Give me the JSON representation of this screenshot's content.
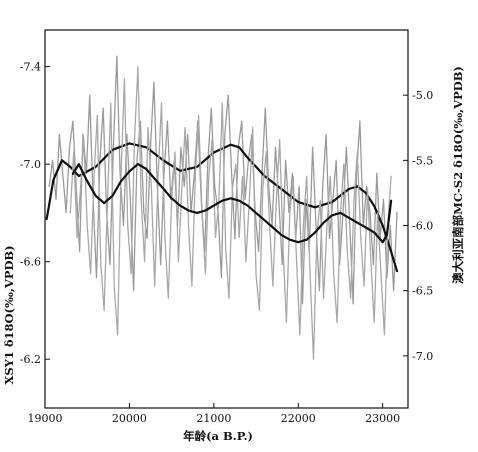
{
  "chart_data": {
    "type": "line",
    "xlabel": "年龄(a B.P.)",
    "left_ylabel": "XSY1 δ18O(‰,VPDB)",
    "right_ylabel": "澳大利亚南部MC-S2 δ18O(‰,VPDB)",
    "x_ticks": [
      "19000",
      "20000",
      "21000",
      "22000",
      "23000"
    ],
    "left_ticks": [
      "-7.4",
      "-7.0",
      "-6.6",
      "-6.2"
    ],
    "right_ticks": [
      "-5.0",
      "-5.5",
      "-6.0",
      "-6.5",
      "-7.0"
    ],
    "xlim": [
      19000,
      23300
    ],
    "left_axis": {
      "ylim": [
        -6.0,
        -7.55
      ],
      "reversed": true
    },
    "right_axis": {
      "ylim": [
        -7.4,
        -4.5
      ],
      "reversed": true
    },
    "series": [
      {
        "axis": "right",
        "kind": "raw",
        "color": "#9a9a9a",
        "x": [
          19050,
          19090,
          19130,
          19170,
          19210,
          19250,
          19290,
          19330,
          19370,
          19410,
          19450,
          19490,
          19530,
          19570,
          19610,
          19650,
          19690,
          19730,
          19770,
          19810,
          19850,
          19890,
          19930,
          19970,
          20010,
          20050,
          20090,
          20130,
          20170,
          20210,
          20250,
          20290,
          20330,
          20370,
          20410,
          20450,
          20490,
          20530,
          20570,
          20610,
          20650,
          20690,
          20730,
          20770,
          20810,
          20850,
          20890,
          20930,
          20970,
          21010,
          21050,
          21090,
          21130,
          21170,
          21210,
          21250,
          21290,
          21330,
          21370,
          21410,
          21450,
          21490,
          21530,
          21570,
          21610,
          21650,
          21690,
          21730,
          21770,
          21810,
          21850,
          21890,
          21930,
          21970,
          22010,
          22050,
          22090,
          22130,
          22170,
          22210,
          22250,
          22290,
          22330,
          22370,
          22410,
          22450,
          22490,
          22530,
          22570,
          22610,
          22650,
          22690,
          22730,
          22770,
          22810,
          22850,
          22890,
          22930,
          22970,
          23010,
          23050,
          23090,
          23130,
          23170
        ],
        "y": [
          -5.7,
          -5.5,
          -5.8,
          -5.3,
          -5.6,
          -5.9,
          -5.4,
          -5.2,
          -5.7,
          -6.2,
          -5.3,
          -5.6,
          -5.0,
          -5.8,
          -6.4,
          -5.5,
          -5.1,
          -5.9,
          -6.3,
          -5.4,
          -4.7,
          -5.6,
          -6.0,
          -5.3,
          -5.8,
          -6.5,
          -5.5,
          -5.2,
          -5.9,
          -6.1,
          -5.4,
          -4.9,
          -5.7,
          -6.3,
          -5.6,
          -5.2,
          -5.8,
          -5.5,
          -6.0,
          -5.4,
          -5.7,
          -5.3,
          -5.9,
          -5.6,
          -5.2,
          -5.8,
          -6.2,
          -5.5,
          -5.1,
          -5.7,
          -5.9,
          -6.4,
          -5.3,
          -5.0,
          -5.6,
          -6.1,
          -5.4,
          -5.2,
          -5.8,
          -5.5,
          -5.3,
          -5.9,
          -6.2,
          -5.6,
          -5.1,
          -5.7,
          -6.0,
          -5.4,
          -5.8,
          -6.3,
          -5.5,
          -5.9,
          -5.6,
          -6.1,
          -5.7,
          -6.6,
          -5.8,
          -6.2,
          -5.4,
          -6.0,
          -6.5,
          -5.7,
          -5.3,
          -6.1,
          -5.8,
          -5.5,
          -6.3,
          -5.9,
          -5.4,
          -6.0,
          -6.6,
          -5.6,
          -5.2,
          -6.0,
          -5.7,
          -5.9,
          -6.3,
          -5.6,
          -6.1,
          -5.8,
          -6.4,
          -6.0,
          -6.5,
          -5.9
        ]
      },
      {
        "axis": "right",
        "kind": "smooth",
        "color": "#111111",
        "x": [
          19020,
          19100,
          19200,
          19300,
          19400,
          19600,
          19800,
          20000,
          20200,
          20400,
          20600,
          20800,
          21000,
          21200,
          21300,
          21400,
          21600,
          21800,
          22000,
          22200,
          22400,
          22600,
          22700,
          22800,
          22900,
          23000,
          23100,
          23170
        ],
        "y": [
          -5.95,
          -5.65,
          -5.5,
          -5.55,
          -5.62,
          -5.55,
          -5.42,
          -5.37,
          -5.4,
          -5.5,
          -5.58,
          -5.55,
          -5.44,
          -5.38,
          -5.4,
          -5.48,
          -5.62,
          -5.72,
          -5.82,
          -5.86,
          -5.82,
          -5.72,
          -5.7,
          -5.75,
          -5.85,
          -6.0,
          -6.2,
          -6.35
        ]
      },
      {
        "axis": "left",
        "kind": "raw",
        "color": "#a8a8a8",
        "x": [
          19300,
          19340,
          19380,
          19420,
          19460,
          19500,
          19540,
          19580,
          19620,
          19660,
          19700,
          19740,
          19780,
          19820,
          19860,
          19900,
          19940,
          19980,
          20020,
          20060,
          20100,
          20140,
          20180,
          20220,
          20260,
          20300,
          20340,
          20380,
          20420,
          20460,
          20500,
          20540,
          20580,
          20620,
          20660,
          20700,
          20740,
          20780,
          20820,
          20860,
          20900,
          20940,
          20980,
          21020,
          21060,
          21100,
          21140,
          21180,
          21220,
          21260,
          21300,
          21340,
          21380,
          21420,
          21460,
          21500,
          21540,
          21580,
          21620,
          21660,
          21700,
          21740,
          21780,
          21820,
          21860,
          21900,
          21940,
          21980,
          22020,
          22060,
          22100,
          22140,
          22180,
          22220,
          22260,
          22300,
          22340,
          22380,
          22420,
          22460,
          22500,
          22540,
          22580,
          22620,
          22660,
          22700,
          22740,
          22780,
          22820,
          22860,
          22900,
          22940,
          22980,
          23020,
          23060,
          23100
        ],
        "y": [
          -6.8,
          -7.05,
          -6.7,
          -6.9,
          -7.1,
          -6.75,
          -6.55,
          -6.95,
          -7.2,
          -6.6,
          -6.4,
          -6.85,
          -7.25,
          -6.5,
          -6.3,
          -6.95,
          -7.35,
          -6.75,
          -6.55,
          -7.1,
          -7.4,
          -6.85,
          -6.6,
          -7.15,
          -6.9,
          -6.5,
          -6.95,
          -7.25,
          -6.7,
          -6.45,
          -6.85,
          -7.05,
          -6.6,
          -6.9,
          -7.15,
          -6.75,
          -6.5,
          -6.95,
          -7.2,
          -6.8,
          -6.55,
          -6.95,
          -7.1,
          -6.7,
          -6.85,
          -7.25,
          -6.65,
          -6.45,
          -6.9,
          -7.0,
          -6.7,
          -6.95,
          -6.6,
          -6.85,
          -7.15,
          -6.55,
          -6.4,
          -6.9,
          -7.05,
          -6.75,
          -6.5,
          -6.85,
          -7.1,
          -6.65,
          -6.35,
          -6.8,
          -6.95,
          -6.6,
          -6.3,
          -6.75,
          -6.95,
          -6.55,
          -6.2,
          -6.7,
          -6.85,
          -6.45,
          -6.75,
          -6.95,
          -6.55,
          -6.35,
          -6.8,
          -7.0,
          -6.65,
          -6.45,
          -6.85,
          -7.05,
          -6.7,
          -6.5,
          -6.9,
          -6.6,
          -6.35,
          -6.8,
          -6.55,
          -6.3,
          -6.75,
          -6.95
        ]
      },
      {
        "axis": "left",
        "kind": "smooth",
        "color": "#111111",
        "x": [
          19330,
          19400,
          19500,
          19600,
          19700,
          19800,
          19900,
          20000,
          20100,
          20200,
          20300,
          20400,
          20500,
          20600,
          20700,
          20800,
          20900,
          21000,
          21100,
          21200,
          21300,
          21400,
          21500,
          21600,
          21700,
          21800,
          21900,
          22000,
          22100,
          22200,
          22300,
          22400,
          22500,
          22600,
          22700,
          22800,
          22900,
          23000,
          23050,
          23100
        ],
        "y": [
          -6.96,
          -7.0,
          -6.93,
          -6.87,
          -6.84,
          -6.87,
          -6.93,
          -6.97,
          -7.0,
          -6.98,
          -6.94,
          -6.9,
          -6.86,
          -6.83,
          -6.81,
          -6.8,
          -6.81,
          -6.83,
          -6.85,
          -6.86,
          -6.85,
          -6.83,
          -6.8,
          -6.77,
          -6.74,
          -6.71,
          -6.69,
          -6.68,
          -6.69,
          -6.72,
          -6.76,
          -6.79,
          -6.8,
          -6.78,
          -6.76,
          -6.74,
          -6.72,
          -6.68,
          -6.71,
          -6.85
        ]
      }
    ]
  }
}
